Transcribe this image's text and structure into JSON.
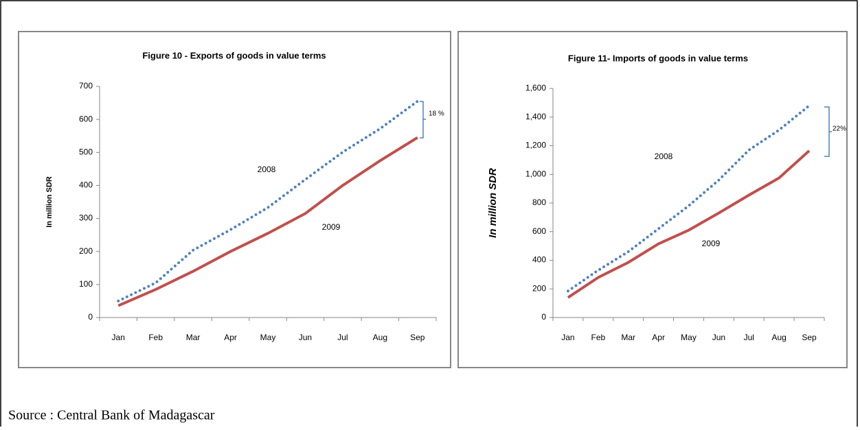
{
  "chart_data": [
    {
      "type": "line",
      "title": "Figure 10 - Exports of goods  in value terms",
      "y_label": "In million SDR",
      "categories": [
        "Jan",
        "Feb",
        "Mar",
        "Apr",
        "May",
        "Jun",
        "Jul",
        "Aug",
        "Sep"
      ],
      "series": [
        {
          "name": "2008",
          "color": "#4f81bd",
          "style": "dotted",
          "values": [
            50,
            105,
            204,
            266,
            333,
            418,
            501,
            572,
            655
          ]
        },
        {
          "name": "2009",
          "color": "#c0504d",
          "style": "solid",
          "values": [
            36,
            85,
            140,
            200,
            255,
            315,
            400,
            475,
            545
          ]
        }
      ],
      "annotation": "18 %",
      "ylim": [
        0,
        700
      ],
      "yticks": [
        0,
        100,
        200,
        300,
        400,
        500,
        600,
        700
      ]
    },
    {
      "type": "line",
      "title": "Figure 11- Imports of goods in value  terms",
      "y_label": "In million SDR",
      "categories": [
        "Jan",
        "Feb",
        "Mar",
        "Apr",
        "May",
        "Jun",
        "Jul",
        "Aug",
        "Sep"
      ],
      "series": [
        {
          "name": "2008",
          "color": "#4f81bd",
          "style": "dotted",
          "values": [
            185,
            330,
            460,
            620,
            780,
            960,
            1170,
            1310,
            1480
          ]
        },
        {
          "name": "2009",
          "color": "#c0504d",
          "style": "solid",
          "values": [
            140,
            280,
            385,
            515,
            610,
            730,
            855,
            975,
            1165
          ]
        }
      ],
      "annotation": "22%",
      "ylim": [
        0,
        1600
      ],
      "yticks": [
        0,
        200,
        400,
        600,
        800,
        {
          "value": 1000,
          "label": "1,000"
        },
        {
          "value": 1200,
          "label": "1,200"
        },
        {
          "value": 1400,
          "label": "1,400"
        },
        {
          "value": 1600,
          "label": "1,600"
        }
      ]
    }
  ],
  "source": "Source : Central Bank of Madagascar"
}
